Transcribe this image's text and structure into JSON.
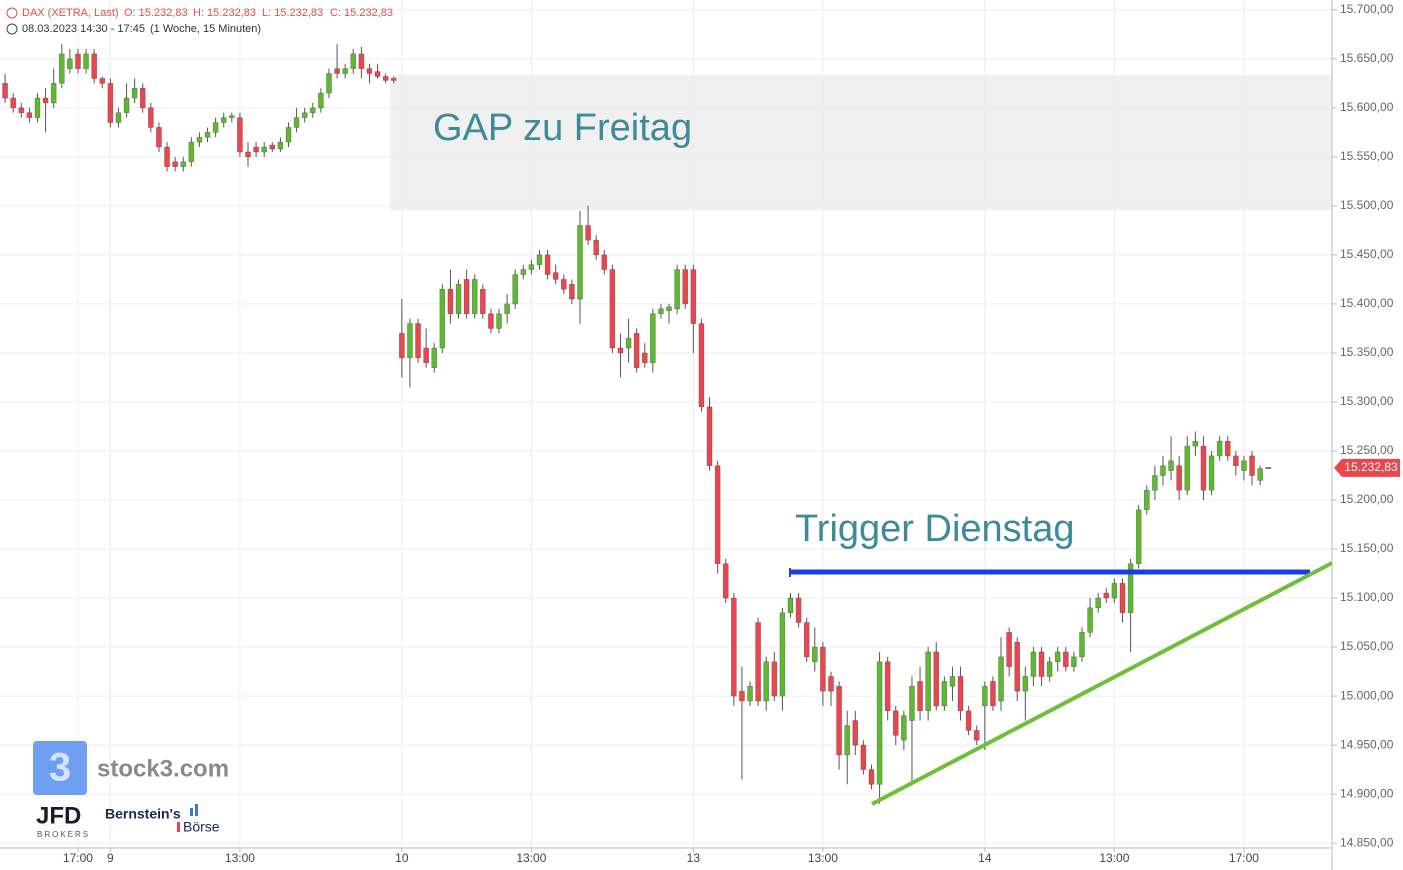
{
  "chart_data": {
    "type": "candlestick",
    "title": "DAX (XETRA, Last)",
    "ohlc_labels": [
      "O: 15.232,83",
      "H: 15.232,83",
      "L: 15.232,83",
      "C: 15.232,83"
    ],
    "subtitle": "08.03.2023 14:30 - 17:45",
    "period": "(1 Woche, 15 Minuten)",
    "annotations": [
      "GAP zu Freitag",
      "Trigger Dienstag"
    ],
    "up_color": "#5fb832",
    "down_color": "#e9474f",
    "grid": true,
    "ylim": [
      14843,
      15710
    ],
    "yticks": [
      {
        "value": 15700,
        "label": "15.700,00"
      },
      {
        "value": 15650,
        "label": "15.650,00"
      },
      {
        "value": 15600,
        "label": "15.600,00"
      },
      {
        "value": 15550,
        "label": "15.550,00"
      },
      {
        "value": 15500,
        "label": "15.500,00"
      },
      {
        "value": 15450,
        "label": "15.450,00"
      },
      {
        "value": 15400,
        "label": "15.400,00"
      },
      {
        "value": 15350,
        "label": "15.350,00"
      },
      {
        "value": 15300,
        "label": "15.300,00"
      },
      {
        "value": 15250,
        "label": "15.250,00"
      },
      {
        "value": 15200,
        "label": "15.200,00"
      },
      {
        "value": 15150,
        "label": "15.150,00"
      },
      {
        "value": 15100,
        "label": "15.100,00"
      },
      {
        "value": 15050,
        "label": "15.050,00"
      },
      {
        "value": 15000,
        "label": "15.000,00"
      },
      {
        "value": 14950,
        "label": "14.950,00"
      },
      {
        "value": 14900,
        "label": "14.900,00"
      },
      {
        "value": 14850,
        "label": "14.850,00"
      }
    ],
    "last_price": {
      "value": 15232.83,
      "label": "15.232,83"
    },
    "categories": [
      null,
      null,
      null,
      null,
      null,
      null,
      null,
      null,
      null,
      "17:00",
      null,
      null,
      null,
      "9",
      null,
      null,
      null,
      null,
      null,
      null,
      null,
      null,
      null,
      null,
      null,
      null,
      null,
      null,
      null,
      "13:00",
      null,
      null,
      null,
      null,
      null,
      null,
      null,
      null,
      null,
      null,
      null,
      null,
      null,
      null,
      null,
      null,
      null,
      null,
      null,
      "10",
      null,
      null,
      null,
      null,
      null,
      null,
      null,
      null,
      null,
      null,
      null,
      null,
      null,
      null,
      null,
      "13:00",
      null,
      null,
      null,
      null,
      null,
      null,
      null,
      null,
      null,
      null,
      null,
      null,
      null,
      null,
      null,
      null,
      null,
      null,
      null,
      "13",
      null,
      null,
      null,
      null,
      null,
      null,
      null,
      null,
      null,
      null,
      null,
      null,
      null,
      null,
      null,
      "13:00",
      null,
      null,
      null,
      null,
      null,
      null,
      null,
      null,
      null,
      null,
      null,
      null,
      null,
      null,
      null,
      null,
      null,
      null,
      null,
      "14",
      null,
      null,
      null,
      null,
      null,
      null,
      null,
      null,
      null,
      null,
      null,
      null,
      null,
      null,
      null,
      "13:00",
      null,
      null,
      null,
      null,
      null,
      null,
      null,
      null,
      null,
      null,
      null,
      null,
      null,
      null,
      null,
      "17:00",
      null,
      null,
      null
    ],
    "open": [
      15625,
      15610,
      15600,
      15595,
      15590,
      15610,
      15605,
      15625,
      15640,
      15655,
      15640,
      15655,
      15630,
      15625,
      15585,
      15595,
      15610,
      15620,
      15600,
      15580,
      15560,
      15545,
      15540,
      15545,
      15565,
      15570,
      15575,
      15585,
      15590,
      15590,
      15555,
      15560,
      15555,
      15562,
      15558,
      15565,
      15580,
      15590,
      15595,
      15600,
      15615,
      15640,
      15635,
      15640,
      15655,
      15640,
      15637,
      15632,
      15630,
      15370,
      15345,
      15380,
      15355,
      15335,
      15355,
      15415,
      15390,
      15425,
      15390,
      15415,
      15390,
      15375,
      15390,
      15400,
      15430,
      15435,
      15440,
      15450,
      15432,
      15425,
      15420,
      15405,
      15480,
      15465,
      15450,
      15435,
      15355,
      15355,
      15370,
      15350,
      15340,
      15390,
      15393,
      15395,
      15435,
      15435,
      15380,
      15295,
      15235,
      15135,
      15100,
      15005,
      14995,
      15075,
      14995,
      15035,
      15000,
      15085,
      15100,
      15075,
      15035,
      15050,
      15020,
      15010,
      14940,
      14975,
      14950,
      14925,
      14910,
      15035,
      14985,
      14955,
      14975,
      15015,
      14985,
      15045,
      14990,
      15010,
      15020,
      14985,
      14965,
      14990,
      15015,
      14995,
      15065,
      15055,
      15005,
      15020,
      15045,
      15020,
      15035,
      15045,
      15030,
      15040,
      15065,
      15090,
      15105,
      15100,
      15115,
      15085,
      15135,
      15190,
      15210,
      15225,
      15230,
      15235,
      15210,
      15255,
      15255,
      15210,
      15245,
      15260,
      15245,
      15230,
      15245,
      15220,
      15232.83
    ],
    "high": [
      15635,
      15615,
      15605,
      15600,
      15615,
      15620,
      15640,
      15665,
      15660,
      15660,
      15660,
      15660,
      15632,
      15630,
      15600,
      15625,
      15630,
      15625,
      15605,
      15585,
      15565,
      15550,
      15550,
      15570,
      15575,
      15580,
      15590,
      15595,
      15595,
      15595,
      15565,
      15565,
      15565,
      15565,
      15570,
      15585,
      15600,
      15600,
      15605,
      15620,
      15640,
      15665,
      15645,
      15660,
      15662,
      15645,
      15645,
      15635,
      15632,
      15405,
      15385,
      15385,
      15375,
      15360,
      15420,
      15435,
      15425,
      15435,
      15430,
      15420,
      15395,
      15395,
      15410,
      15435,
      15440,
      15445,
      15455,
      15455,
      15440,
      15430,
      15425,
      15495,
      15500,
      15470,
      15455,
      15440,
      15370,
      15385,
      15375,
      15360,
      15395,
      15400,
      15400,
      15440,
      15440,
      15440,
      15385,
      15305,
      15240,
      15140,
      15105,
      15030,
      15015,
      15080,
      15040,
      15045,
      15090,
      15105,
      15105,
      15080,
      15070,
      15055,
      15025,
      15015,
      14985,
      14985,
      14955,
      14930,
      15045,
      15040,
      14990,
      14985,
      15020,
      15030,
      15050,
      15055,
      15020,
      15030,
      15030,
      14990,
      14970,
      15015,
      15020,
      15060,
      15070,
      15060,
      15030,
      15050,
      15050,
      15040,
      15050,
      15050,
      15045,
      15070,
      15100,
      15105,
      15110,
      15120,
      15120,
      15140,
      15195,
      15215,
      15235,
      15245,
      15265,
      15245,
      15265,
      15270,
      15265,
      15250,
      15265,
      15265,
      15250,
      15245,
      15250,
      15235,
      15232.83
    ],
    "low": [
      15605,
      15595,
      15590,
      15585,
      15585,
      15575,
      15600,
      15620,
      15635,
      15635,
      15635,
      15625,
      15620,
      15580,
      15580,
      15590,
      15605,
      15595,
      15575,
      15555,
      15535,
      15535,
      15535,
      15540,
      15560,
      15565,
      15570,
      15580,
      15585,
      15550,
      15540,
      15550,
      15550,
      15555,
      15555,
      15560,
      15575,
      15585,
      15590,
      15595,
      15610,
      15630,
      15630,
      15635,
      15630,
      15625,
      15630,
      15625,
      15625,
      15325,
      15315,
      15340,
      15335,
      15330,
      15350,
      15380,
      15385,
      15385,
      15385,
      15385,
      15370,
      15370,
      15380,
      15395,
      15425,
      15430,
      15435,
      15425,
      15420,
      15410,
      15400,
      15380,
      15460,
      15445,
      15430,
      15350,
      15325,
      15340,
      15330,
      15335,
      15330,
      15385,
      15380,
      15390,
      15395,
      15350,
      15290,
      15230,
      15125,
      15095,
      14990,
      14915,
      14990,
      14990,
      14985,
      14995,
      14985,
      15080,
      15070,
      15035,
      15025,
      14990,
      14990,
      14925,
      14910,
      14940,
      14920,
      14905,
      14890,
      14975,
      14950,
      14945,
      14910,
      14975,
      14975,
      14985,
      14985,
      14995,
      14975,
      14960,
      14950,
      14945,
      14985,
      14985,
      15020,
      14995,
      14975,
      15010,
      15010,
      15015,
      15025,
      15025,
      15025,
      15035,
      15060,
      15085,
      15095,
      15095,
      15075,
      15045,
      15130,
      15185,
      15200,
      15215,
      15220,
      15200,
      15205,
      15245,
      15200,
      15205,
      15240,
      15240,
      15225,
      15220,
      15215,
      15215,
      15232.83
    ],
    "close": [
      15610,
      15600,
      15595,
      15590,
      15610,
      15605,
      15625,
      15655,
      15650,
      15640,
      15655,
      15630,
      15625,
      15585,
      15595,
      15610,
      15620,
      15600,
      15580,
      15560,
      15540,
      15540,
      15545,
      15565,
      15570,
      15575,
      15585,
      15590,
      15592,
      15555,
      15550,
      15555,
      15560,
      15558,
      15565,
      15580,
      15590,
      15595,
      15600,
      15615,
      15635,
      15635,
      15640,
      15655,
      15640,
      15635,
      15632,
      15628,
      15628,
      15345,
      15380,
      15345,
      15340,
      15355,
      15415,
      15390,
      15420,
      15390,
      15425,
      15390,
      15375,
      15390,
      15400,
      15430,
      15435,
      15440,
      15450,
      15430,
      15425,
      15415,
      15405,
      15480,
      15465,
      15450,
      15435,
      15355,
      15350,
      15365,
      15335,
      15340,
      15390,
      15395,
      15397,
      15435,
      15400,
      15380,
      15295,
      15235,
      15135,
      15100,
      15000,
      14995,
      15010,
      14995,
      15035,
      15000,
      15085,
      15100,
      15075,
      15040,
      15050,
      15005,
      15005,
      14940,
      14970,
      14950,
      14925,
      14910,
      15035,
      14985,
      14960,
      14980,
      15010,
      14985,
      15045,
      14990,
      15015,
      15020,
      14985,
      14965,
      14955,
      15010,
      14990,
      15040,
      15030,
      15005,
      15020,
      15045,
      15020,
      15035,
      15045,
      15030,
      15040,
      15065,
      15090,
      15100,
      15100,
      15115,
      15085,
      15135,
      15190,
      15210,
      15225,
      15235,
      15240,
      15210,
      15255,
      15260,
      15210,
      15245,
      15260,
      15245,
      15235,
      15240,
      15225,
      15232,
      15232.83
    ],
    "logos": {
      "stock3": "stock3.com",
      "jfd": "JFD",
      "jfd_sub": "BROKERS",
      "bernstein": "Bernstein's",
      "boerse": "Börse"
    }
  }
}
